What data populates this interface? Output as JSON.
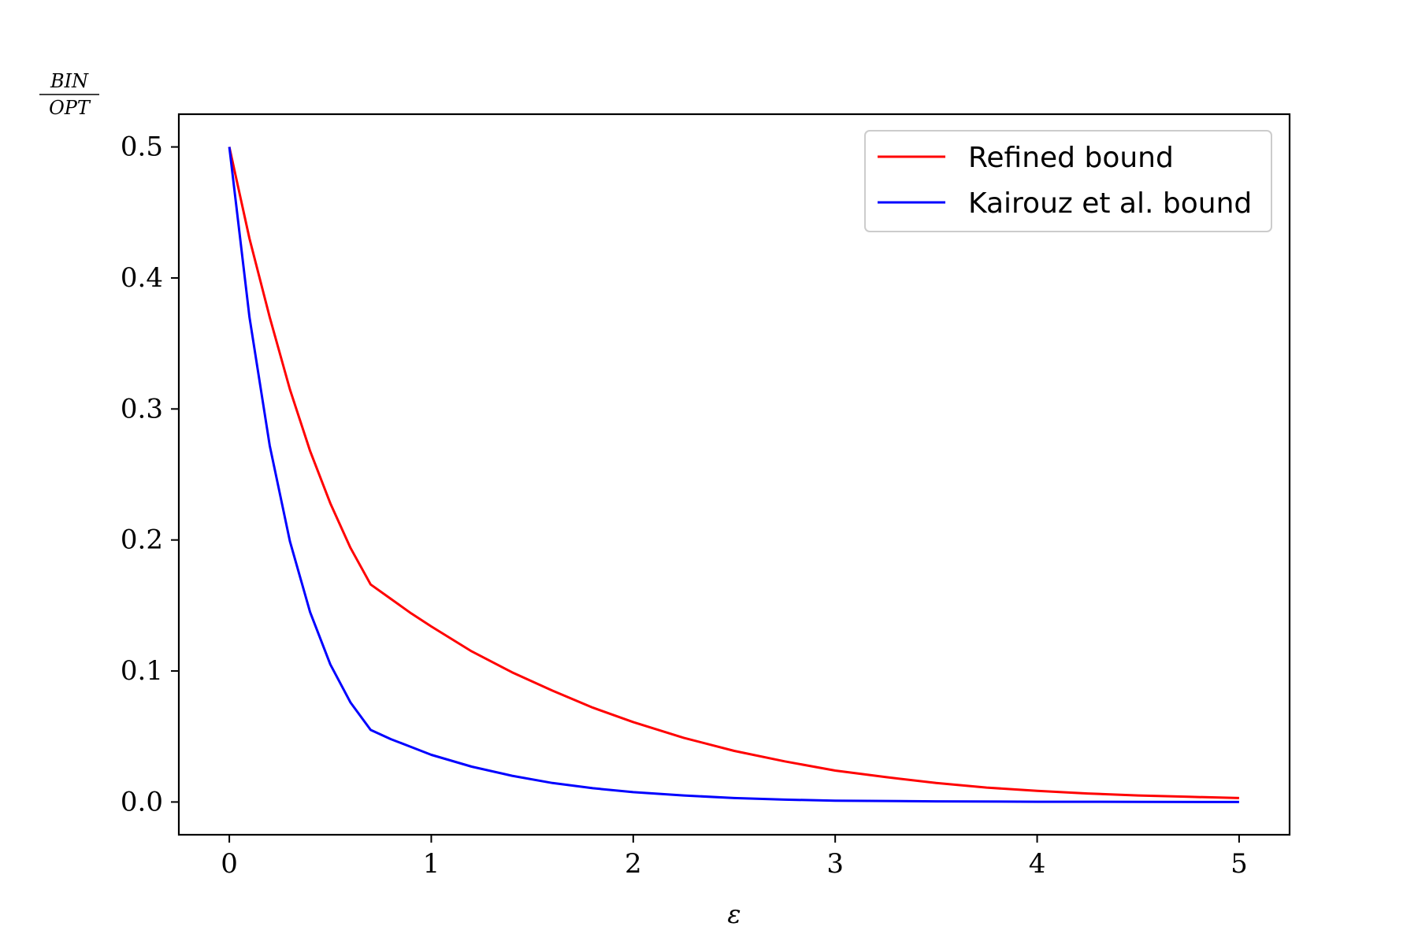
{
  "chart_data": {
    "type": "line",
    "title": "",
    "xlabel": "ε",
    "ylabel_numerator": "BIN",
    "ylabel_denominator": "OPT",
    "xlim": [
      -0.25,
      5.25
    ],
    "ylim": [
      -0.025,
      0.525
    ],
    "xticks": [
      0,
      1,
      2,
      3,
      4,
      5
    ],
    "xtick_labels": [
      "0",
      "1",
      "2",
      "3",
      "4",
      "5"
    ],
    "yticks": [
      0.0,
      0.1,
      0.2,
      0.3,
      0.4,
      0.5
    ],
    "ytick_labels": [
      "0.0",
      "0.1",
      "0.2",
      "0.3",
      "0.4",
      "0.5"
    ],
    "grid": false,
    "legend_position": "top-right",
    "series": [
      {
        "name": "Refined bound",
        "color": "#ff0000",
        "x": [
          0,
          0.1,
          0.2,
          0.3,
          0.4,
          0.5,
          0.6,
          0.7,
          0.8,
          0.9,
          1.0,
          1.2,
          1.4,
          1.6,
          1.8,
          2.0,
          2.25,
          2.5,
          2.75,
          3.0,
          3.25,
          3.5,
          3.75,
          4.0,
          4.25,
          4.5,
          4.75,
          5.0
        ],
        "y": [
          0.5,
          0.43,
          0.37,
          0.315,
          0.268,
          0.228,
          0.194,
          0.166,
          0.155,
          0.144,
          0.134,
          0.115,
          0.099,
          0.085,
          0.072,
          0.061,
          0.049,
          0.039,
          0.031,
          0.024,
          0.019,
          0.0145,
          0.011,
          0.0085,
          0.0065,
          0.005,
          0.004,
          0.003
        ]
      },
      {
        "name": "Kairouz et al. bound",
        "color": "#0000ff",
        "x": [
          0,
          0.1,
          0.2,
          0.3,
          0.4,
          0.5,
          0.6,
          0.7,
          0.8,
          0.9,
          1.0,
          1.2,
          1.4,
          1.6,
          1.8,
          2.0,
          2.25,
          2.5,
          2.75,
          3.0,
          3.5,
          4.0,
          4.5,
          5.0
        ],
        "y": [
          0.5,
          0.37,
          0.272,
          0.199,
          0.145,
          0.105,
          0.076,
          0.055,
          0.048,
          0.042,
          0.036,
          0.027,
          0.02,
          0.0145,
          0.0105,
          0.0075,
          0.005,
          0.003,
          0.0018,
          0.001,
          0.0005,
          0.0002,
          0.0001,
          0.0
        ]
      }
    ]
  }
}
